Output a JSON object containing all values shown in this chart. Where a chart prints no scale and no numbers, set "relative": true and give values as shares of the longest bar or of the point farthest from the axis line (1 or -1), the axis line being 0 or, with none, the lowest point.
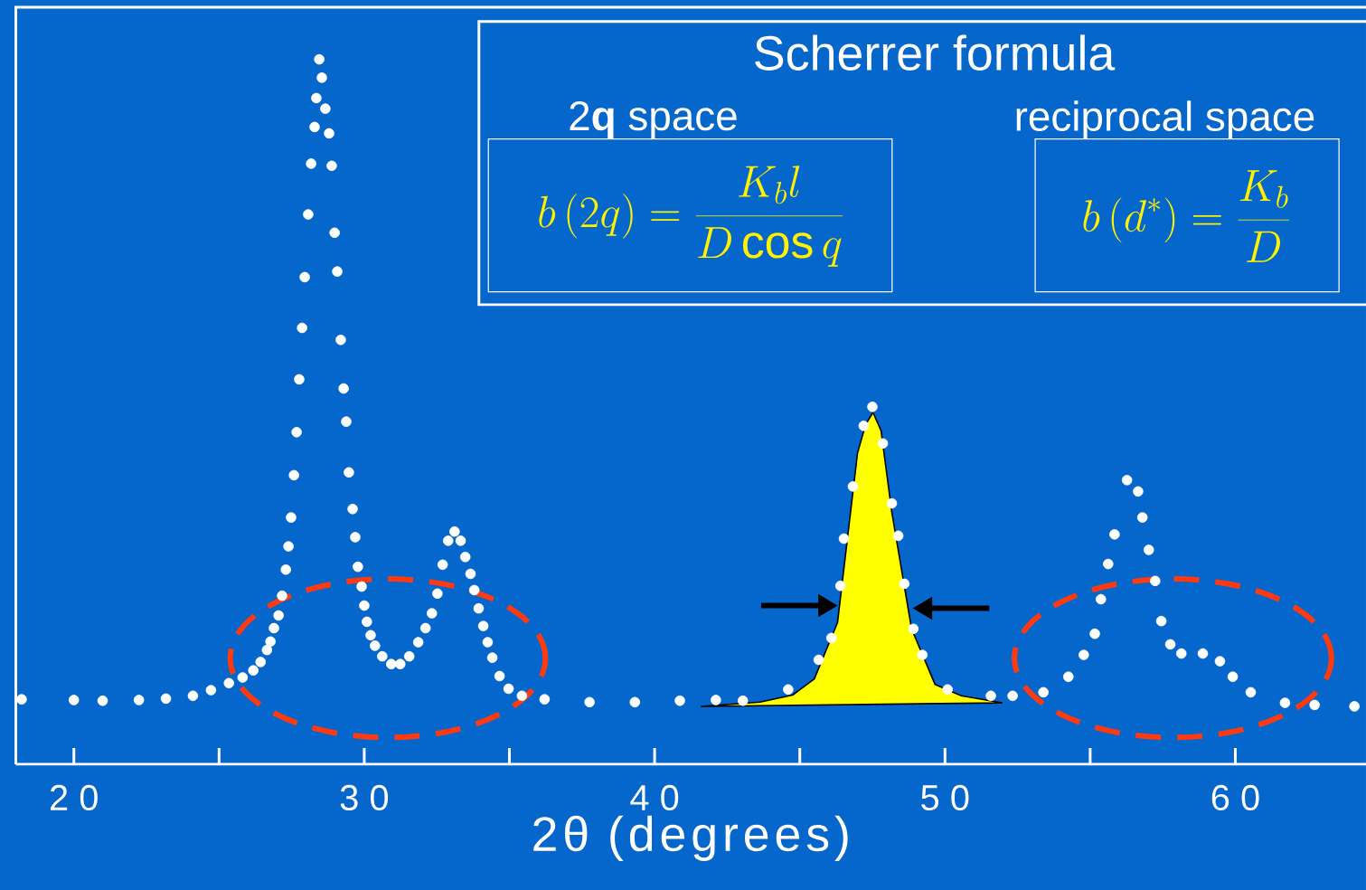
{
  "chart_data": {
    "type": "scatter",
    "title": "Scherrer formula",
    "xlabel": "2θ (degrees)",
    "relative": true,
    "marker": "circle",
    "xlim": [
      18,
      64.5
    ],
    "xticks": [
      20,
      30,
      40,
      50,
      60
    ],
    "annotations": [
      "2**q** space",
      "reciprocal space",
      "b\\left(2q\\right)=\\frac{K_b l}{D\\cos q}",
      "b\\left(d^*\\right)=\\frac{K_b}{D}"
    ],
    "series": [
      {
        "color": "#ffffff",
        "x": [
          18.2,
          20.0,
          20.99,
          22.24,
          23.17,
          24.1,
          24.72,
          25.34,
          25.81,
          26.18,
          26.43,
          26.65,
          26.77,
          26.89,
          27.05,
          27.17,
          27.3,
          27.39,
          27.48,
          27.58,
          27.67,
          27.76,
          27.86,
          27.95,
          28.07,
          28.17,
          28.29,
          28.35,
          28.45,
          28.54,
          28.66,
          28.79,
          28.88,
          28.98,
          29.07,
          29.19,
          29.29,
          29.38,
          29.47,
          29.6,
          29.69,
          29.78,
          29.91,
          30.0,
          30.09,
          30.22,
          30.37,
          30.62,
          30.93,
          31.24,
          31.55,
          31.86,
          32.11,
          32.33,
          32.52,
          32.7,
          32.89,
          33.11,
          33.32,
          33.48,
          33.66,
          33.79,
          33.94,
          34.1,
          34.25,
          34.41,
          34.66,
          34.97,
          35.43,
          36.21,
          37.76,
          39.32,
          40.87,
          42.11,
          43.04,
          44.6,
          45.65,
          46.09,
          46.4,
          46.52,
          46.83,
          47.2,
          47.5,
          47.86,
          48.17,
          48.39,
          48.6,
          48.91,
          49.22,
          50.09,
          51.58,
          52.33,
          53.39,
          54.25,
          54.78,
          55.16,
          55.37,
          55.62,
          55.84,
          56.27,
          56.65,
          56.8,
          57.02,
          57.24,
          57.45,
          57.76,
          58.14,
          58.88,
          59.47,
          59.91,
          60.53,
          61.71,
          62.73,
          64.1
        ],
        "values": [
          0.092,
          0.091,
          0.09,
          0.091,
          0.093,
          0.097,
          0.105,
          0.115,
          0.123,
          0.133,
          0.145,
          0.162,
          0.174,
          0.193,
          0.211,
          0.239,
          0.276,
          0.309,
          0.35,
          0.41,
          0.471,
          0.546,
          0.619,
          0.691,
          0.78,
          0.852,
          0.904,
          0.945,
          1.0,
          0.974,
          0.93,
          0.895,
          0.849,
          0.754,
          0.699,
          0.602,
          0.533,
          0.486,
          0.414,
          0.362,
          0.322,
          0.28,
          0.252,
          0.225,
          0.202,
          0.183,
          0.168,
          0.153,
          0.142,
          0.142,
          0.153,
          0.173,
          0.193,
          0.214,
          0.242,
          0.283,
          0.317,
          0.33,
          0.317,
          0.294,
          0.27,
          0.247,
          0.221,
          0.196,
          0.173,
          0.151,
          0.125,
          0.107,
          0.097,
          0.092,
          0.088,
          0.088,
          0.09,
          0.091,
          0.09,
          0.106,
          0.148,
          0.179,
          0.253,
          0.32,
          0.394,
          0.48,
          0.507,
          0.455,
          0.37,
          0.324,
          0.256,
          0.192,
          0.155,
          0.106,
          0.097,
          0.097,
          0.102,
          0.124,
          0.155,
          0.185,
          0.234,
          0.284,
          0.326,
          0.403,
          0.387,
          0.35,
          0.304,
          0.26,
          0.203,
          0.17,
          0.157,
          0.157,
          0.146,
          0.124,
          0.102,
          0.087,
          0.084,
          0.082
        ]
      },
      {
        "type": "area",
        "marker": "none",
        "color": "#ffff00",
        "x": [
          41.61,
          43.63,
          44.75,
          45.5,
          46.3,
          46.99,
          47.27,
          47.52,
          47.8,
          48.17,
          48.85,
          49.66,
          50.56,
          51.96
        ],
        "values": [
          0.082,
          0.088,
          0.098,
          0.121,
          0.201,
          0.442,
          0.482,
          0.499,
          0.473,
          0.357,
          0.192,
          0.113,
          0.097,
          0.087
        ]
      }
    ]
  }
}
